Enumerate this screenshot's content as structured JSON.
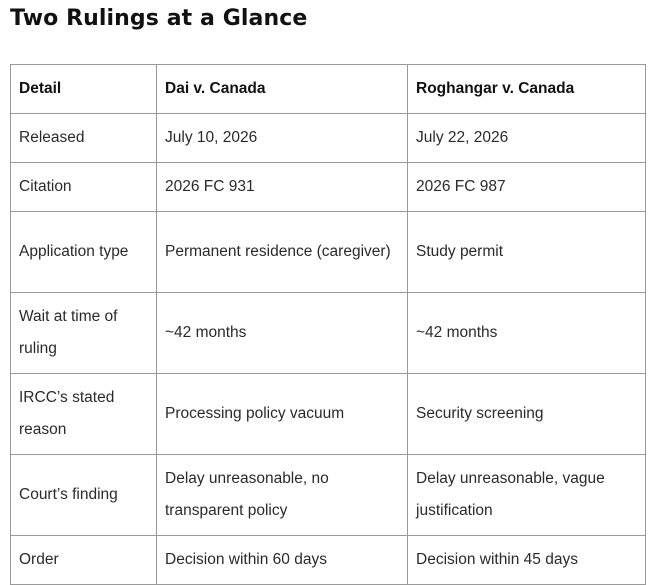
{
  "page": {
    "title": "Two Rulings at a Glance"
  },
  "table": {
    "headers": [
      "Detail",
      "Dai v. Canada",
      "Roghangar v. Canada"
    ],
    "rows": [
      [
        "Released",
        "July 10, 2026",
        "July 22, 2026"
      ],
      [
        "Citation",
        "2026 FC 931",
        "2026 FC 987"
      ],
      [
        "Application type",
        "Permanent residence (caregiver)",
        "Study permit"
      ],
      [
        "Wait at time of ruling",
        "~42 months",
        "~42 months"
      ],
      [
        "IRCC’s stated reason",
        "Processing policy vacuum",
        "Security screening"
      ],
      [
        "Court’s finding",
        "Delay unreasonable, no transparent policy",
        "Delay unreasonable, vague justification"
      ],
      [
        "Order",
        "Decision within 60 days",
        "Decision within 45 days"
      ]
    ]
  }
}
